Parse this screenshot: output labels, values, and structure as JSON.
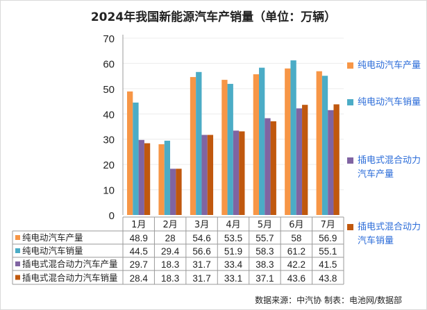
{
  "chart_data": {
    "type": "bar",
    "title": "2024年我国新能源汽车产销量（单位：万辆）",
    "categories": [
      "1月",
      "2月",
      "3月",
      "4月",
      "5月",
      "6月",
      "7月"
    ],
    "ylim": [
      0,
      70
    ],
    "yticks": [
      0,
      10,
      20,
      30,
      40,
      50,
      60,
      70
    ],
    "grid": true,
    "legend_placement": "right",
    "series": [
      {
        "name": "纯电动汽车产量",
        "color": "#F79646",
        "values": [
          48.9,
          28,
          54.6,
          53.5,
          55.7,
          58,
          56.9
        ]
      },
      {
        "name": "纯电动汽车销量",
        "color": "#4BACC6",
        "values": [
          44.5,
          29.4,
          56.6,
          51.9,
          58.3,
          61.2,
          55.1
        ]
      },
      {
        "name": "插电式混合动力汽车产量",
        "color": "#8064A2",
        "values": [
          29.7,
          18.3,
          31.7,
          33.4,
          38.3,
          42.2,
          41.5
        ]
      },
      {
        "name": "插电式混合动力汽车销量",
        "color": "#C0580E",
        "values": [
          28.4,
          18.3,
          31.7,
          33.1,
          37.1,
          43.6,
          43.8
        ]
      }
    ],
    "data_table": true
  },
  "footer": {
    "source": "数据来源：中汽协  制表：电池网/数据部"
  }
}
